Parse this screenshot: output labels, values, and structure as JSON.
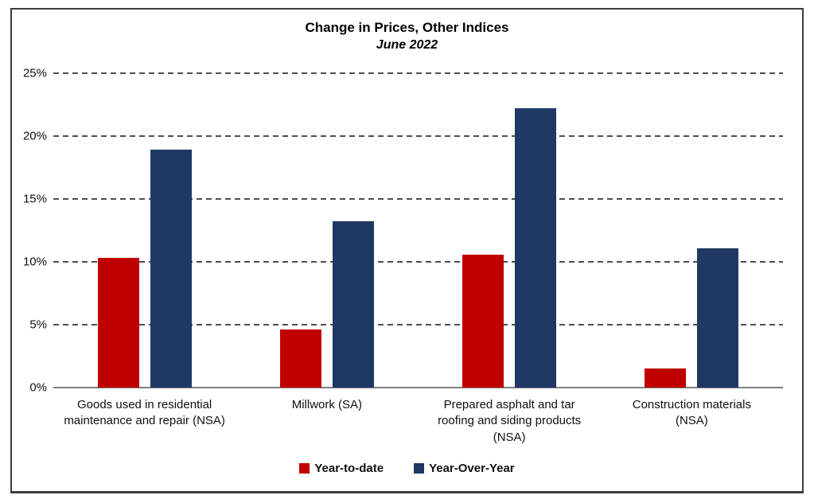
{
  "chart": {
    "title": "Change in Prices, Other Indices",
    "subtitle": "June 2022"
  },
  "chart_data": {
    "type": "bar",
    "title": "Change in Prices, Other Indices",
    "subtitle": "June 2022",
    "categories": [
      "Goods used in residential\nmaintenance and repair (NSA)",
      "Millwork (SA)",
      "Prepared asphalt and tar\nroofing and siding products\n(NSA)",
      "Construction materials\n(NSA)"
    ],
    "series": [
      {
        "name": "Year-to-date",
        "color": "#C00000",
        "values": [
          10.3,
          4.6,
          10.6,
          1.5
        ]
      },
      {
        "name": "Year-Over-Year",
        "color": "#1F3864",
        "values": [
          18.9,
          13.2,
          22.2,
          11.1
        ]
      }
    ],
    "xlabel": "",
    "ylabel": "",
    "ylim": [
      0,
      25
    ],
    "yticks": [
      {
        "value": 0,
        "label": "0%"
      },
      {
        "value": 5,
        "label": "5%"
      },
      {
        "value": 10,
        "label": "10%"
      },
      {
        "value": 15,
        "label": "15%"
      },
      {
        "value": 20,
        "label": "20%"
      },
      {
        "value": 25,
        "label": "25%"
      }
    ],
    "grid": "horizontal dashed",
    "grid_color": "#4f4f4f",
    "axis_color": "#808080",
    "legend_position": "bottom"
  }
}
